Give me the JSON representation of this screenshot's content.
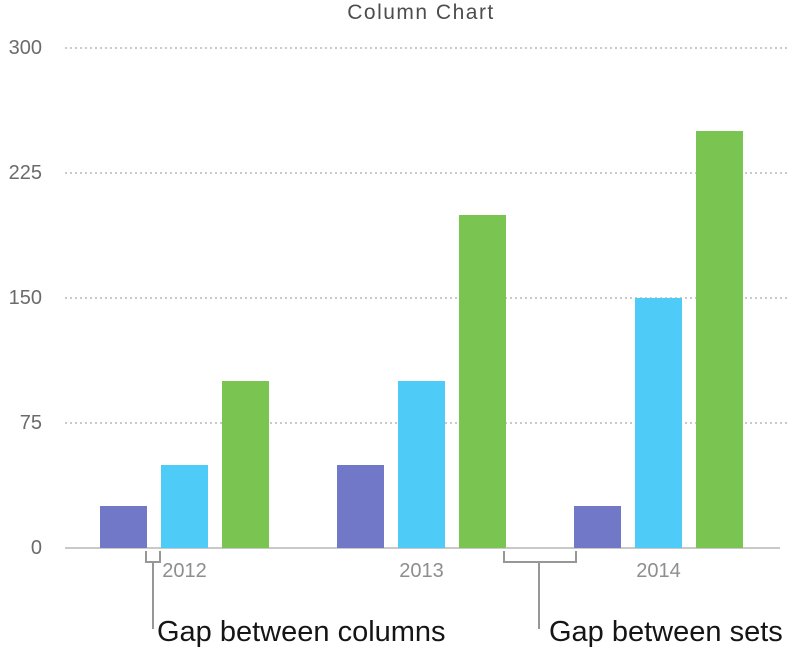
{
  "chart_data": {
    "type": "bar",
    "title": "Column Chart",
    "categories": [
      "2012",
      "2013",
      "2014"
    ],
    "series": [
      {
        "name": "purple-series",
        "color": "#7278C8",
        "values": [
          25,
          50,
          25
        ]
      },
      {
        "name": "blue-series",
        "color": "#4FCBF8",
        "values": [
          50,
          100,
          150
        ]
      },
      {
        "name": "green-series",
        "color": "#7AC551",
        "values": [
          100,
          200,
          250
        ]
      }
    ],
    "xlabel": "",
    "ylabel": "",
    "ylim": [
      0,
      300
    ],
    "yticks": [
      0,
      75,
      150,
      225,
      300
    ],
    "grid": "horizontal-dotted",
    "legend": "none"
  },
  "annotations": {
    "gap_between_columns": "Gap between columns",
    "gap_between_sets": "Gap between sets"
  },
  "colors": {
    "background": "#FFFFFF",
    "title_text": "#4D4D4D",
    "y_tick_text": "#6B6B6B",
    "x_tick_text": "#8E8E8E",
    "gridline": "#C9C9C9",
    "baseline": "#C9C9C9",
    "bracket": "#979797",
    "annotation_text": "#151515"
  }
}
